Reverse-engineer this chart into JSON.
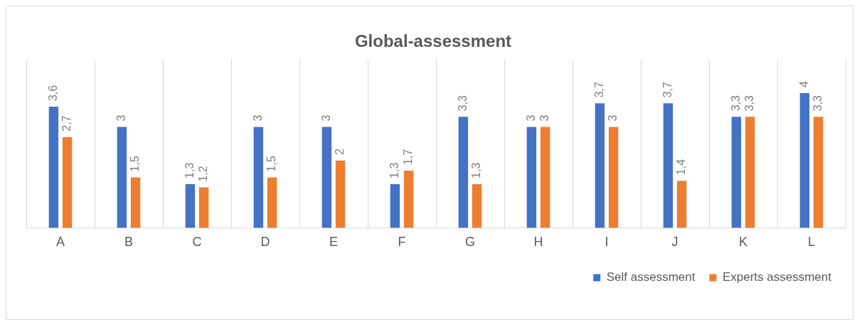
{
  "chart_data": {
    "type": "bar",
    "title": "Global-assessment",
    "categories": [
      "A",
      "B",
      "C",
      "D",
      "E",
      "F",
      "G",
      "H",
      "I",
      "J",
      "K",
      "L"
    ],
    "series": [
      {
        "name": "Self assessment",
        "color": "#4472c4",
        "values": [
          3.6,
          3,
          1.3,
          3,
          3,
          1.3,
          3.3,
          3,
          3.7,
          3.7,
          3.3,
          4
        ],
        "value_labels": [
          "3,6",
          "3",
          "1,3",
          "3",
          "3",
          "1,3",
          "3,3",
          "3",
          "3,7",
          "3,7",
          "3,3",
          "4"
        ]
      },
      {
        "name": "Experts assessment",
        "color": "#ed7d31",
        "values": [
          2.7,
          1.5,
          1.2,
          1.5,
          2,
          1.7,
          1.3,
          3,
          3,
          1.4,
          3.3,
          3.3
        ],
        "value_labels": [
          "2,7",
          "1,5",
          "1,2",
          "1,5",
          "2",
          "1,7",
          "1,3",
          "3",
          "3",
          "1,4",
          "3,3",
          "3,3"
        ]
      }
    ],
    "ylim": [
      0,
      5
    ],
    "tick_labels": "x",
    "grid": "x",
    "legend": "bottom right"
  }
}
